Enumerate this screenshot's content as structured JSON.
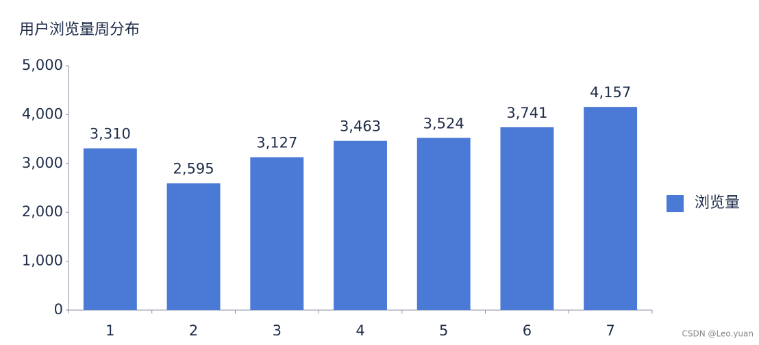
{
  "chart_data": {
    "type": "bar",
    "title": "用户浏览量周分布",
    "categories": [
      "1",
      "2",
      "3",
      "4",
      "5",
      "6",
      "7"
    ],
    "series": [
      {
        "name": "浏览量",
        "color": "#4a79d6",
        "values": [
          3310,
          2595,
          3127,
          3463,
          3524,
          3741,
          4157
        ],
        "value_labels": [
          "3,310",
          "2,595",
          "3,127",
          "3,463",
          "3,524",
          "3,741",
          "4,157"
        ]
      }
    ],
    "ylim": [
      0,
      5000
    ],
    "yticks": [
      0,
      {
        "value": 1000,
        "label": "1,000"
      },
      {
        "value": 2000,
        "label": "2,000"
      },
      {
        "value": 3000,
        "label": "3,000"
      },
      {
        "value": 4000,
        "label": "4,000"
      },
      {
        "value": 5000,
        "label": "5,000"
      }
    ],
    "grid": false,
    "legend": "right",
    "watermark": "CSDN @Leo.yuan"
  }
}
